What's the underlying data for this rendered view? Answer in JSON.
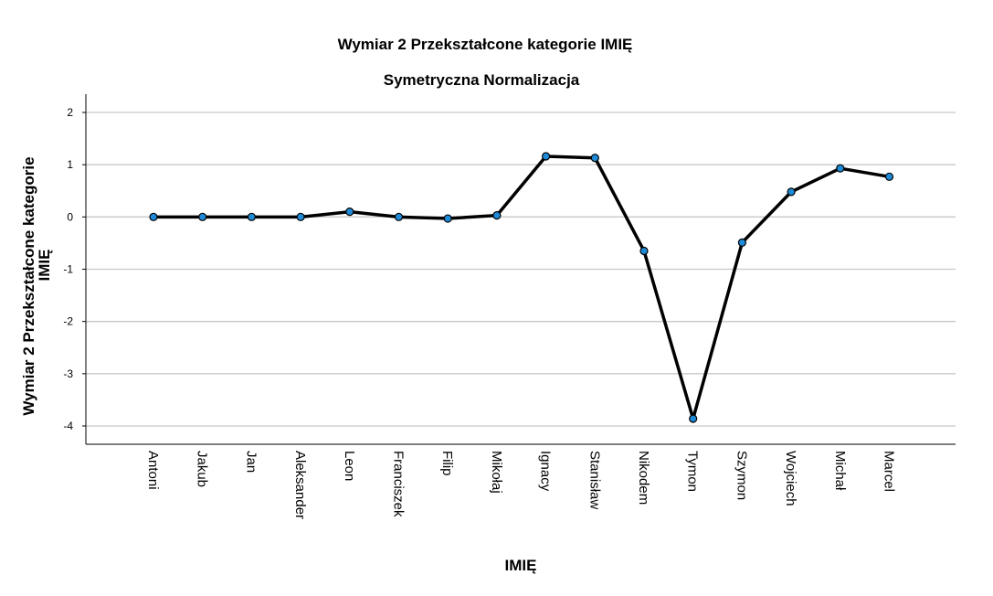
{
  "chart_data": {
    "type": "line",
    "title": "Wymiar 2 Przekształcone kategorie IMIĘ",
    "subtitle": "Symetryczna Normalizacja",
    "xlabel": "IMIĘ",
    "ylabel_line1": "Wymiar 2 Przekształcone kategorie",
    "ylabel_line2": "IMIĘ",
    "ylim": [
      -4.35,
      2.35
    ],
    "yticks": [
      2,
      1,
      0,
      -1,
      -2,
      -3,
      -4
    ],
    "ytick_labels": [
      "2",
      "1",
      "0",
      "-1",
      "-2",
      "-3",
      "-4"
    ],
    "grid": true,
    "line_color": "#000000",
    "marker_color": "#1f8ad8",
    "categories": [
      "Antoni",
      "Jakub",
      "Jan",
      "Aleksander",
      "Leon",
      "Franciszek",
      "Filip",
      "Mikołaj",
      "Ignacy",
      "Stanisław",
      "Nikodem",
      "Tymon",
      "Szymon",
      "Wojciech",
      "Michał",
      "Marcel"
    ],
    "values": [
      0.0,
      0.0,
      0.0,
      0.0,
      0.1,
      0.0,
      -0.03,
      0.03,
      1.16,
      1.13,
      -0.65,
      -3.86,
      -0.49,
      0.48,
      0.93,
      0.77
    ]
  }
}
